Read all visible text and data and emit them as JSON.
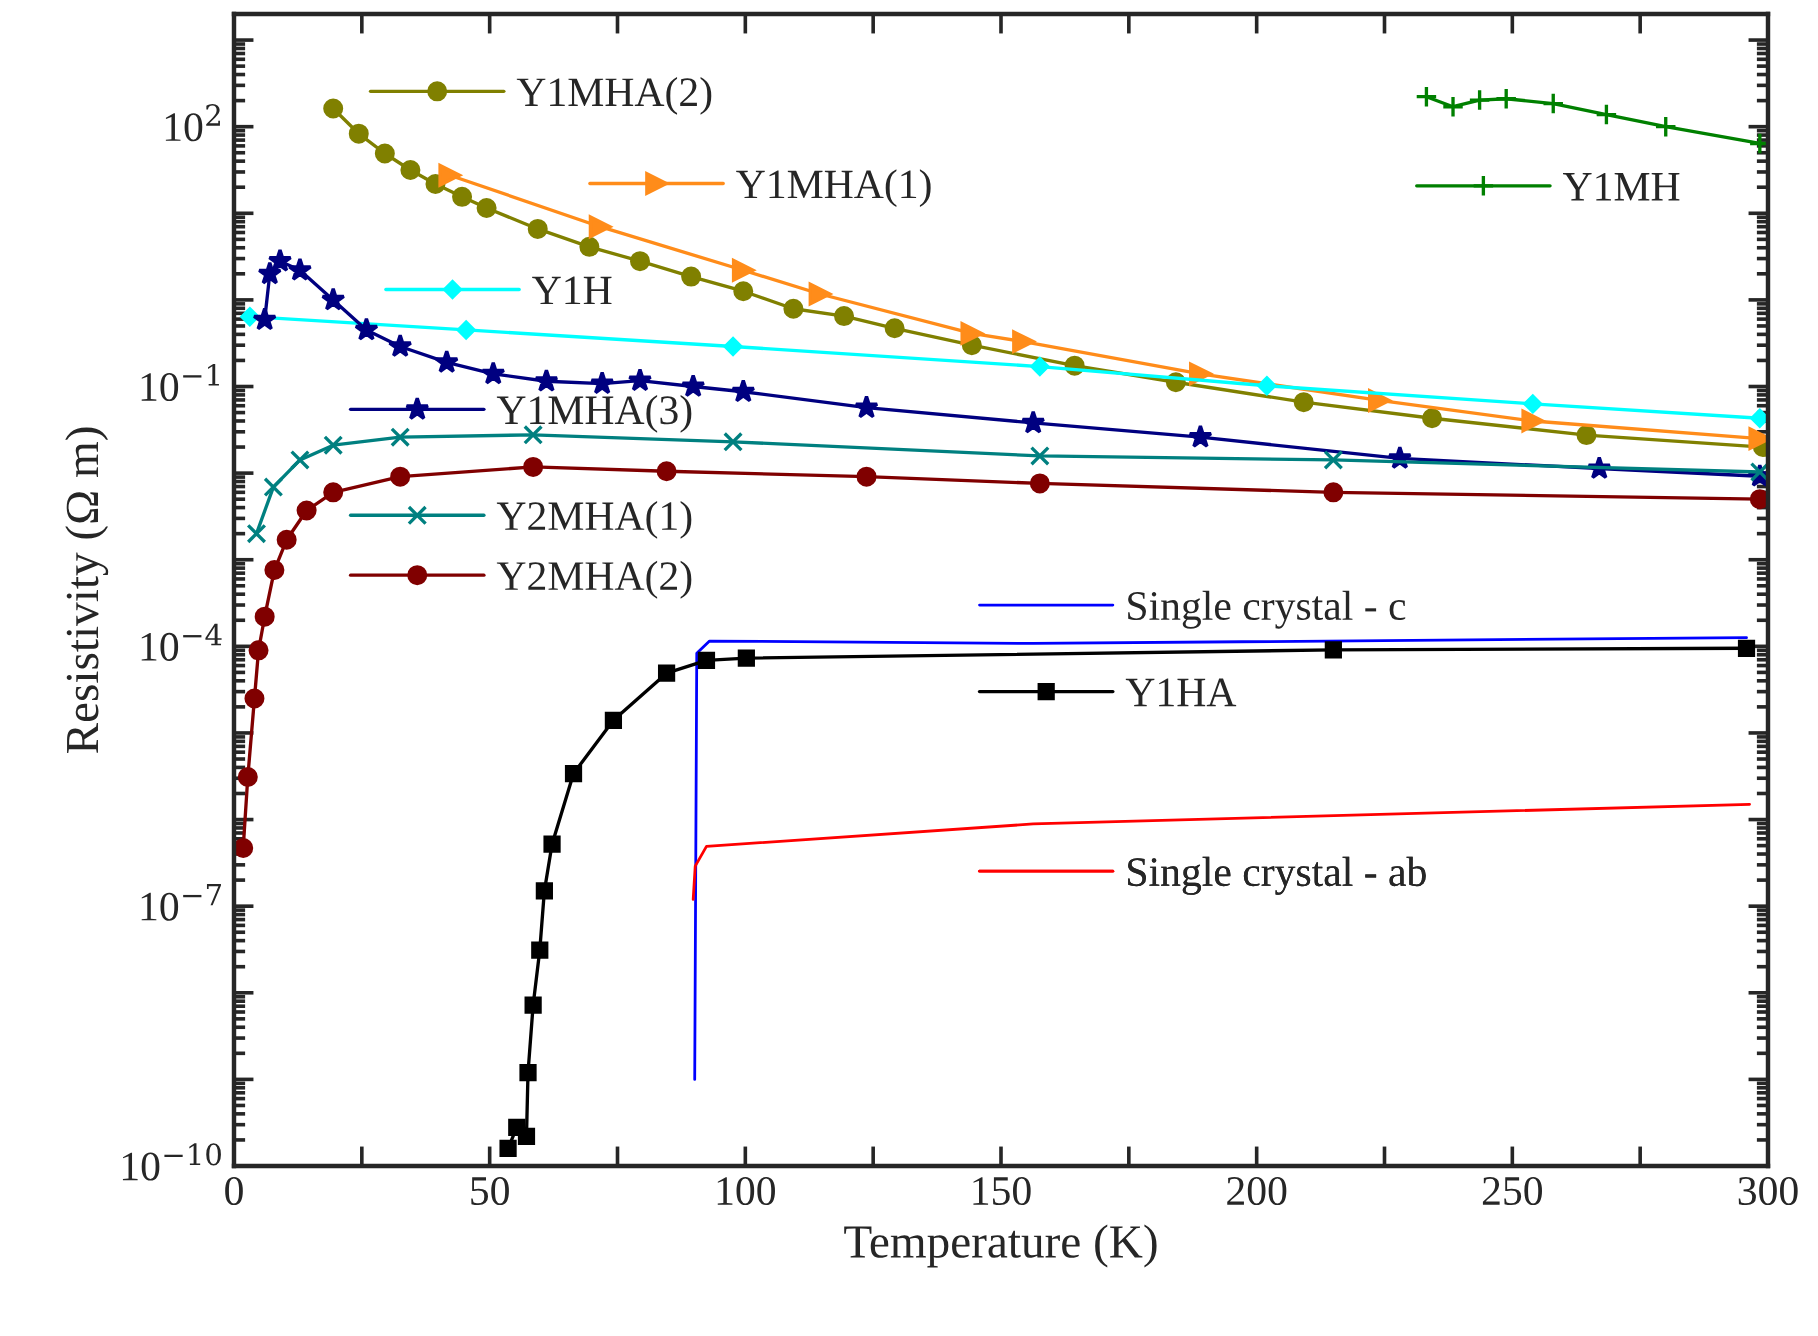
{
  "chart_data": {
    "type": "line",
    "xlabel": "Temperature (K)",
    "ylabel": "Resistivity (Ω m)",
    "log": "y",
    "grid": false,
    "legend": "top left",
    "xlim": [
      0,
      300
    ],
    "xticks": [
      0,
      {
        "value": 25,
        "label": null
      },
      50,
      {
        "value": 75,
        "label": null
      },
      100,
      {
        "value": 125,
        "label": null
      },
      150,
      {
        "value": 175,
        "label": null
      },
      200,
      {
        "value": 225,
        "label": null
      },
      250,
      {
        "value": 275,
        "label": null
      },
      300
    ],
    "ylim": [
      1e-10,
      2000
    ],
    "yticks": [
      {
        "value": 1e-10,
        "label": "10$^{−10}$"
      },
      {
        "value": 1e-09,
        "label": null
      },
      {
        "value": 1e-08,
        "label": null
      },
      {
        "value": 1e-07,
        "label": "10$^{−7}$"
      },
      {
        "value": 1e-06,
        "label": null
      },
      {
        "value": 1e-05,
        "label": null
      },
      {
        "value": 0.0001,
        "label": "10$^{−4}$"
      },
      {
        "value": 0.001,
        "label": null
      },
      {
        "value": 0.01,
        "label": null
      },
      {
        "value": 0.1,
        "label": "10$^{−1}$"
      },
      {
        "value": 1,
        "label": null
      },
      {
        "value": 10,
        "label": null
      },
      {
        "value": 100,
        "label": "10$^{2}$"
      },
      {
        "value": 1000,
        "label": null
      }
    ],
    "series": [
      {
        "name": "Y1MHA(2)",
        "color": "#808000",
        "marker": "circle",
        "line_style": "solid",
        "x": [
          19.4,
          24.4,
          29.5,
          34.5,
          39.4,
          44.6,
          49.4,
          59.4,
          69.5,
          79.4,
          89.4,
          99.6,
          109.4,
          119.3,
          129.2,
          144.3,
          164.4,
          184.2,
          209.2,
          234.3,
          264.5,
          299
        ],
        "values": [
          162,
          83,
          49,
          31.6,
          21.8,
          15.5,
          11.5,
          6.6,
          4.1,
          2.8,
          1.86,
          1.26,
          0.79,
          0.65,
          0.47,
          0.3,
          0.174,
          0.112,
          0.066,
          0.043,
          0.0275,
          0.02
        ]
      },
      {
        "name": "Y1MHA(1)",
        "color": "#ff8c1a",
        "marker": "triangle",
        "line_style": "solid",
        "x": [
          42.2,
          71.6,
          99.6,
          114.6,
          144.3,
          154.4,
          189,
          224,
          254,
          298.4
        ],
        "values": [
          27.5,
          7.0,
          2.2,
          1.17,
          0.41,
          0.33,
          0.14,
          0.069,
          0.04,
          0.025
        ]
      },
      {
        "name": "Y1H",
        "color": "#00ffff",
        "marker": "diamond",
        "line_style": "solid",
        "x": [
          3.1,
          45.4,
          97.6,
          157.6,
          202,
          254,
          298.4
        ],
        "values": [
          0.64,
          0.45,
          0.29,
          0.17,
          0.102,
          0.063,
          0.043
        ]
      },
      {
        "name": "Y1MHA(3)",
        "color": "#000080",
        "marker": "star",
        "line_style": "solid",
        "x": [
          6,
          7,
          9,
          12.9,
          19.4,
          25.9,
          32.5,
          41.6,
          50.7,
          61.1,
          72,
          79.4,
          89.8,
          99.6,
          123.7,
          156.3,
          189,
          228,
          267,
          298.4
        ],
        "values": [
          0.59,
          2.0,
          2.8,
          2.2,
          1.0,
          0.45,
          0.29,
          0.19,
          0.14,
          0.115,
          0.108,
          0.117,
          0.1,
          0.087,
          0.057,
          0.038,
          0.026,
          0.0148,
          0.0113,
          0.0092
        ]
      },
      {
        "name": "Y2MHA(1)",
        "color": "#008080",
        "marker": "cross",
        "line_style": "solid",
        "x": [
          4.4,
          7.7,
          12.9,
          19.4,
          32.5,
          58.5,
          97.6,
          157.6,
          215,
          298.4
        ],
        "values": [
          0.002,
          0.0069,
          0.0142,
          0.021,
          0.026,
          0.0277,
          0.023,
          0.0158,
          0.0142,
          0.0103
        ]
      },
      {
        "name": "Y2MHA(2)",
        "color": "#800000",
        "marker": "circle",
        "line_style": "solid",
        "x": [
          1.8,
          2.7,
          4.0,
          4.8,
          6,
          7.9,
          10.3,
          14.2,
          19.4,
          32.5,
          58.5,
          84.6,
          123.7,
          157.6,
          215,
          298.4
        ],
        "values": [
          4.7e-07,
          3.1e-06,
          2.5e-05,
          9e-05,
          0.00022,
          0.00076,
          0.0017,
          0.0037,
          0.006,
          0.0091,
          0.0118,
          0.0105,
          0.0091,
          0.0076,
          0.006,
          0.005
        ]
      },
      {
        "name": "Y1MH",
        "color": "#008000",
        "marker": "plus",
        "line_style": "solid",
        "x": [
          233.2,
          238.4,
          243.6,
          248.8,
          258,
          268.4,
          280,
          298.4
        ],
        "values": [
          222,
          170,
          203,
          210,
          185,
          138,
          100,
          64
        ]
      },
      {
        "name": "Single crystal - c",
        "color": "#0000ff",
        "marker": "none",
        "line_style": "solid",
        "x": [
          90.1,
          90.5,
          93,
          156.3,
          295.8
        ],
        "values": [
          1e-09,
          8.3e-05,
          0.000115,
          0.000108,
          0.000126
        ]
      },
      {
        "name": "Y1HA",
        "color": "#000000",
        "marker": "square",
        "line_style": "solid",
        "x": [
          53.6,
          55.3,
          57.2,
          57.5,
          58.5,
          59.8,
          60.7,
          62.2,
          66.4,
          74.2,
          84.6,
          92.4,
          100.2,
          215,
          295.8
        ],
        "values": [
          1.6e-10,
          2.8e-10,
          2.2e-10,
          1.2e-09,
          7.2e-09,
          3.1e-08,
          1.5e-07,
          5.2e-07,
          3.4e-06,
          1.4e-05,
          4.9e-05,
          6.9e-05,
          7.3e-05,
          9.1e-05,
          9.5e-05
        ]
      },
      {
        "name": "Single crystal - ab",
        "color": "#ff0000",
        "marker": "none",
        "line_style": "solid",
        "x": [
          89.8,
          90.2,
          92.4,
          156.3,
          296.4
        ],
        "values": [
          1.2e-07,
          2.9e-07,
          4.9e-07,
          8.9e-07,
          1.5e-06
        ]
      }
    ]
  }
}
